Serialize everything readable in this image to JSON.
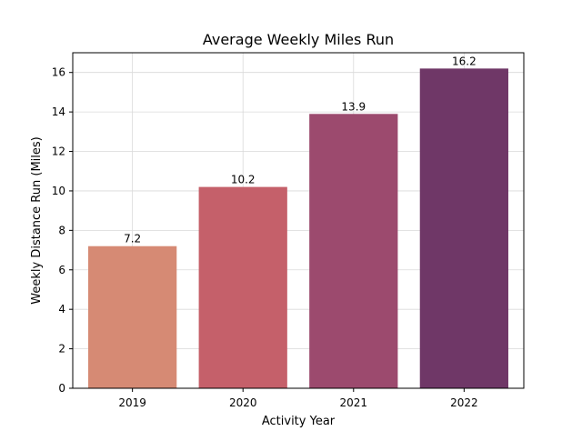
{
  "chart_data": {
    "type": "bar",
    "title": "Average Weekly Miles Run",
    "xlabel": "Activity Year",
    "ylabel": "Weekly Distance Run (Miles)",
    "categories": [
      "2019",
      "2020",
      "2021",
      "2022"
    ],
    "values": [
      7.2,
      10.2,
      13.9,
      16.2
    ],
    "data_labels": [
      "7.2",
      "10.2",
      "13.9",
      "16.2"
    ],
    "colors": [
      "#d68a74",
      "#c5606a",
      "#9c4a6e",
      "#6f3767"
    ],
    "ylim": [
      0,
      17
    ],
    "yticks": [
      0,
      2,
      4,
      6,
      8,
      10,
      12,
      14,
      16
    ],
    "grid": true,
    "legend": "none"
  }
}
